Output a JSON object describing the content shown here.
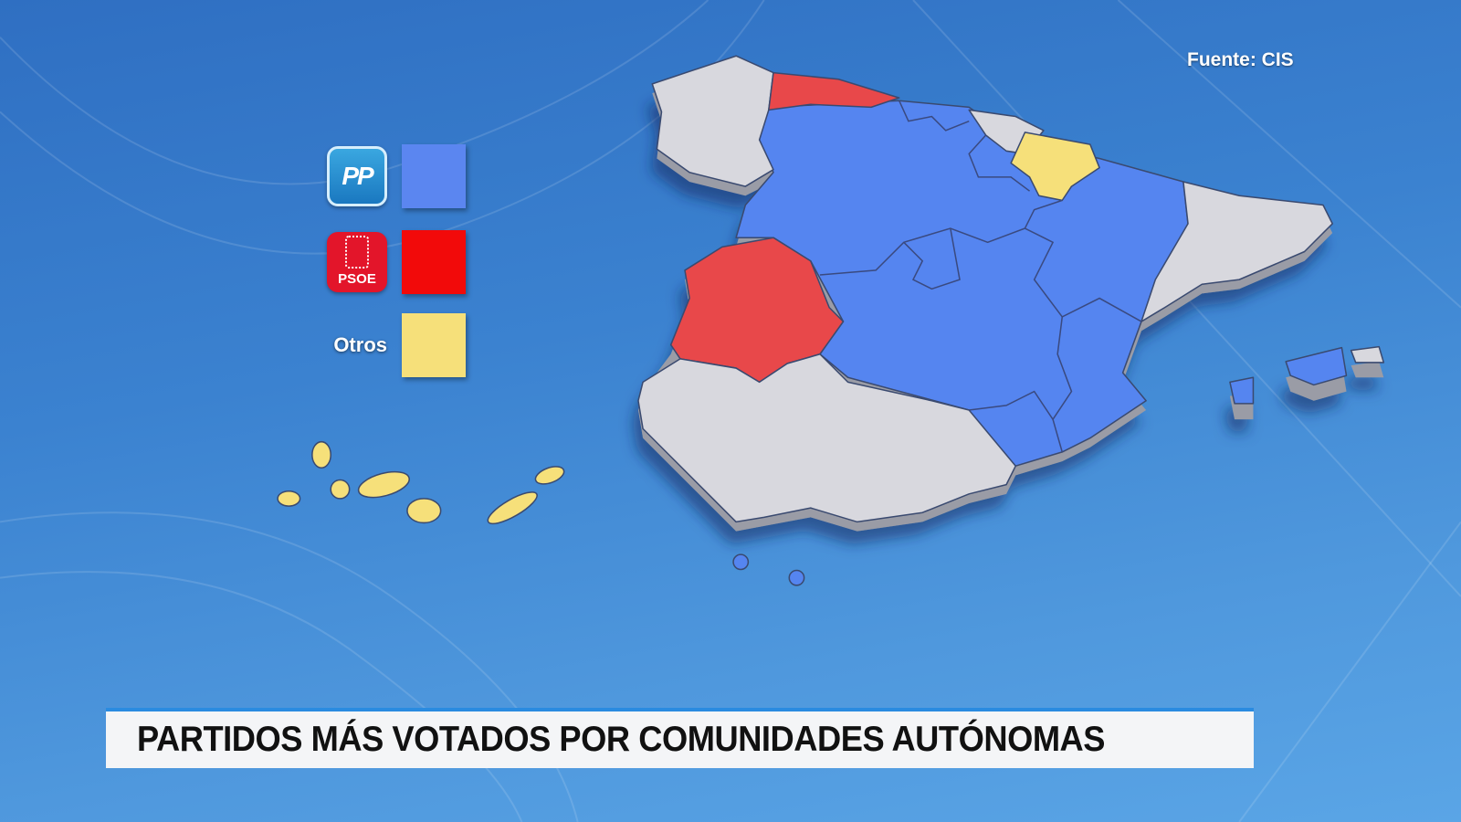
{
  "title": "PARTIDOS MÁS VOTADOS POR COMUNIDADES AUTÓNOMAS",
  "source": "Fuente: CIS",
  "legend": [
    {
      "party": "PP",
      "logo_text": "PP",
      "color": "#5b86f0"
    },
    {
      "party": "PSOE",
      "logo_text": "PSOE",
      "color": "#f20a0a"
    },
    {
      "party": "Otros",
      "label": "Otros",
      "color": "#f6e07a"
    }
  ],
  "colors": {
    "PP": "#5585f0",
    "PSOE": "#e8484a",
    "Otros": "#f6e07a",
    "none": "#d8d8de",
    "background": "#3b82d0"
  },
  "regions": {
    "galicia": "none",
    "asturias": "PSOE",
    "cantabria": "PP",
    "pais_vasco": "none",
    "navarra": "Otros",
    "castilla_y_leon": "PP",
    "la_rioja": "PP",
    "aragon": "PP",
    "cataluna": "none",
    "madrid": "PP",
    "castilla_la_mancha": "PP",
    "comunidad_valenciana": "PP",
    "murcia": "PP",
    "extremadura": "PSOE",
    "andalucia": "none",
    "baleares": "PP",
    "canarias": "Otros",
    "ceuta": "PP",
    "melilla": "PP"
  }
}
